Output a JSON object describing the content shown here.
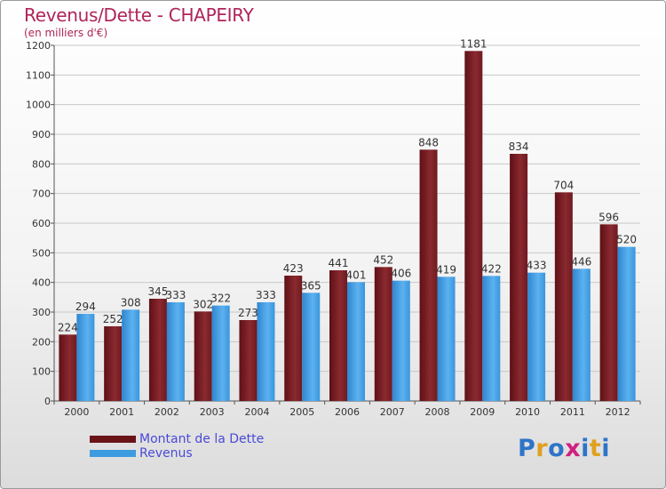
{
  "chart_data": {
    "type": "bar",
    "title": "Revenus/Dette - CHAPEIRY",
    "subtitle": "(en milliers d'€)",
    "categories": [
      "2000",
      "2001",
      "2002",
      "2003",
      "2004",
      "2005",
      "2006",
      "2007",
      "2008",
      "2009",
      "2010",
      "2011",
      "2012"
    ],
    "series": [
      {
        "name": "Montant de la Dette",
        "color": "#7a1a22",
        "values": [
          224,
          252,
          345,
          302,
          273,
          423,
          441,
          452,
          848,
          1181,
          834,
          704,
          596
        ]
      },
      {
        "name": "Revenus",
        "color": "#3d9be0",
        "values": [
          294,
          308,
          333,
          322,
          333,
          365,
          401,
          406,
          419,
          422,
          433,
          446,
          520
        ]
      }
    ],
    "ylim": [
      0,
      1200
    ],
    "yticks": [
      0,
      100,
      200,
      300,
      400,
      500,
      600,
      700,
      800,
      900,
      1000,
      1100,
      1200
    ],
    "grid": true,
    "legend": "bottom-left"
  },
  "legend": {
    "debt_label": "Montant de la Dette",
    "revenue_label": "Revenus"
  },
  "logo": {
    "letters": [
      "P",
      "r",
      "o",
      "x",
      "i",
      "t",
      "i"
    ],
    "colors": [
      "#2e74c8",
      "#e0a020",
      "#2e74c8",
      "#d02080",
      "#2e74c8",
      "#e0a020",
      "#2e74c8"
    ]
  }
}
